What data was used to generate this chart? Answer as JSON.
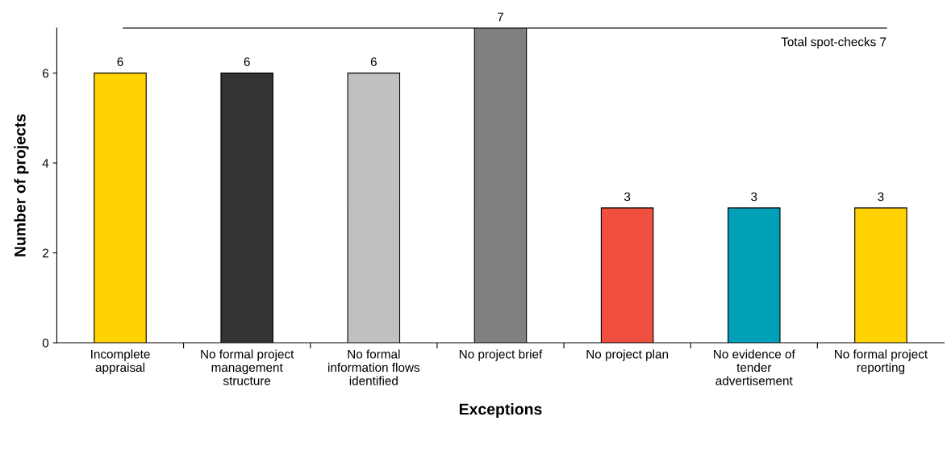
{
  "chart_data": {
    "type": "bar",
    "xlabel": "Exceptions",
    "ylabel": "Number of projects",
    "categories": [
      "Incomplete\nappraisal",
      "No formal project\nmanagement\nstructure",
      "No formal\ninformation flows\nidentified",
      "No project brief",
      "No project plan",
      "No evidence of\ntender\nadvertisement",
      "No formal project\nreporting"
    ],
    "values": [
      6,
      6,
      6,
      7,
      3,
      3,
      3
    ],
    "colors": [
      "#ffd200",
      "#333333",
      "#c0c0c0",
      "#808080",
      "#f04e3e",
      "#00a0b8",
      "#ffd200"
    ],
    "ylim": [
      0,
      7
    ],
    "yticks": [
      0,
      2,
      4,
      6
    ],
    "grid": false,
    "data_labels": true,
    "ref_lines": [
      {
        "axis": "y",
        "value": 7,
        "label": "Total spot-checks 7",
        "color": "#000000"
      }
    ]
  }
}
